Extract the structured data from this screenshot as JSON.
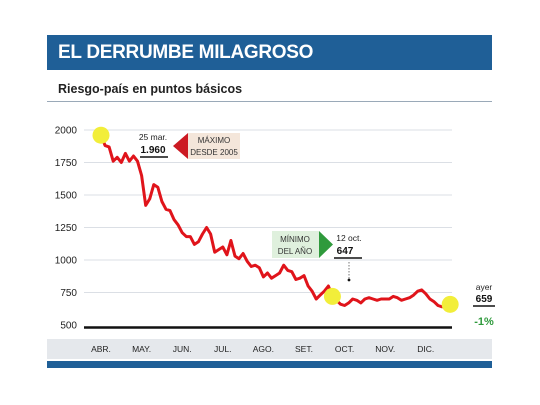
{
  "header": {
    "title": "EL DERRUMBE MILAGROSO",
    "subtitle": "Riesgo-país en puntos básicos"
  },
  "annotations": {
    "max": {
      "date": "25 mar.",
      "value": "1.960",
      "label_line1": "MÁXIMO",
      "label_line2": "DESDE 2005"
    },
    "min": {
      "date": "12 oct.",
      "value": "647",
      "label_line1": "MÍNIMO",
      "label_line2": "DEL AÑO"
    },
    "latest": {
      "label": "ayer",
      "value": "659",
      "change": "-1%"
    }
  },
  "colors": {
    "brand": "#1f5f97",
    "line": "#e0141b",
    "highlight": "#f2ee3a",
    "change": "#2f9a3c",
    "min_arrow": "#2f9a3c",
    "max_arrow": "#cc1a22"
  },
  "chart_data": {
    "type": "line",
    "title": "EL DERRUMBE MILAGROSO",
    "subtitle": "Riesgo-país en puntos básicos",
    "xlabel": "",
    "ylabel": "",
    "ylim": [
      500,
      2000
    ],
    "yticks": [
      500,
      750,
      1000,
      1250,
      1500,
      1750,
      2000
    ],
    "grid": true,
    "categories": [
      "ABR.",
      "MAY.",
      "JUN.",
      "JUL.",
      "AGO.",
      "SET.",
      "OCT.",
      "NOV.",
      "DIC."
    ],
    "series": [
      {
        "name": "",
        "x": [
          0.0,
          0.1,
          0.2,
          0.3,
          0.4,
          0.5,
          0.6,
          0.7,
          0.8,
          0.9,
          1.0,
          1.1,
          1.2,
          1.3,
          1.4,
          1.5,
          1.6,
          1.7,
          1.8,
          1.9,
          2.0,
          2.1,
          2.2,
          2.3,
          2.4,
          2.5,
          2.6,
          2.7,
          2.8,
          2.9,
          3.0,
          3.1,
          3.2,
          3.3,
          3.4,
          3.5,
          3.6,
          3.7,
          3.8,
          3.9,
          4.0,
          4.1,
          4.2,
          4.3,
          4.4,
          4.5,
          4.6,
          4.7,
          4.8,
          4.9,
          5.0,
          5.1,
          5.2,
          5.3,
          5.4,
          5.5,
          5.6,
          5.7,
          5.8,
          5.9,
          6.0,
          6.1,
          6.2,
          6.3,
          6.4,
          6.5,
          6.6,
          6.7,
          6.8,
          6.9,
          7.0,
          7.1,
          7.2,
          7.3,
          7.4,
          7.5,
          7.6,
          7.7,
          7.8,
          7.9,
          8.0,
          8.1,
          8.2,
          8.3,
          8.4,
          8.5,
          8.6
        ],
        "values": [
          1960,
          1880,
          1870,
          1760,
          1790,
          1750,
          1820,
          1760,
          1800,
          1760,
          1650,
          1420,
          1470,
          1580,
          1560,
          1450,
          1390,
          1380,
          1310,
          1270,
          1210,
          1180,
          1180,
          1120,
          1140,
          1200,
          1250,
          1200,
          1060,
          1080,
          1100,
          1040,
          1150,
          1030,
          1010,
          1050,
          990,
          950,
          960,
          940,
          870,
          900,
          860,
          880,
          900,
          960,
          920,
          910,
          850,
          860,
          880,
          800,
          760,
          700,
          730,
          760,
          800,
          720,
          690,
          660,
          650,
          670,
          700,
          690,
          670,
          700,
          710,
          700,
          690,
          700,
          700,
          700,
          720,
          710,
          690,
          700,
          710,
          730,
          760,
          770,
          740,
          700,
          680,
          650,
          640,
          640,
          659
        ]
      }
    ]
  }
}
